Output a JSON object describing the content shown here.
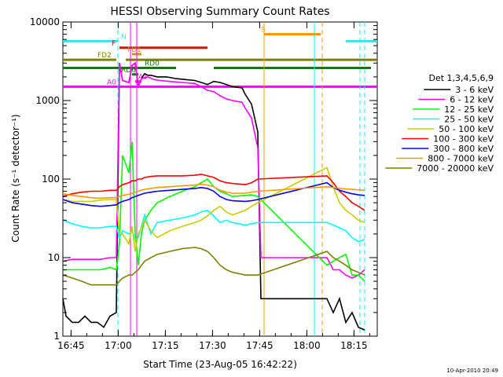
{
  "chart_data": {
    "type": "line",
    "title": "HESSI Observing Summary Count Rates",
    "xlabel": "Start Time (23-Aug-05 16:42:22)",
    "ylabel": "Count Rate (s⁻¹ detector⁻¹)",
    "x_unit": "UT minutes after 16:42:22",
    "xlim": [
      0,
      100
    ],
    "ylim": [
      1,
      10000
    ],
    "y_scale": "log",
    "x_ticks": [
      {
        "label": "16:45",
        "x": 2.6
      },
      {
        "label": "17:00",
        "x": 17.6
      },
      {
        "label": "17:15",
        "x": 32.6
      },
      {
        "label": "17:30",
        "x": 47.6
      },
      {
        "label": "17:45",
        "x": 62.6
      },
      {
        "label": "18:00",
        "x": 77.6
      },
      {
        "label": "18:15",
        "x": 92.6
      }
    ],
    "y_ticks": [
      {
        "label": "1",
        "y": 1
      },
      {
        "label": "10",
        "y": 10
      },
      {
        "label": "100",
        "y": 100
      },
      {
        "label": "1000",
        "y": 1000
      },
      {
        "label": "10000",
        "y": 10000
      }
    ],
    "legend_title": "Det 1,3,4,5,6,9",
    "legend_position": "right",
    "timestamp": "10-Apr-2010 20:49",
    "series": [
      {
        "name": "3 - 6 keV",
        "color": "#000000",
        "x": [
          0,
          1,
          3,
          5,
          7,
          9,
          11,
          13,
          15,
          17,
          18,
          19,
          21,
          22,
          23,
          24,
          25,
          26,
          27,
          28,
          30,
          33,
          36,
          39,
          42,
          44,
          46,
          48,
          50,
          52,
          54,
          57,
          58,
          60,
          62,
          63,
          84,
          86,
          88,
          90,
          92,
          94,
          96
        ],
        "y": [
          3,
          1.8,
          1.5,
          1.5,
          1.8,
          1.5,
          1.5,
          1.3,
          1.8,
          2,
          3000,
          1800,
          1700,
          2800,
          3000,
          1500,
          1900,
          2200,
          2100,
          2100,
          2000,
          2000,
          1900,
          1850,
          1800,
          1700,
          1600,
          1750,
          1700,
          1600,
          1500,
          1450,
          1200,
          900,
          400,
          3,
          3,
          2,
          3,
          1.5,
          2,
          1.3,
          1.2
        ]
      },
      {
        "name": "6 - 12 keV",
        "color": "#ff00ff",
        "x": [
          0,
          3,
          6,
          9,
          12,
          15,
          17,
          18,
          19,
          21,
          22,
          23,
          24,
          25,
          27,
          29,
          31,
          34,
          38,
          42,
          44,
          46,
          48,
          50,
          52,
          54,
          57,
          58,
          60,
          62,
          63,
          84,
          86,
          88,
          90,
          92,
          94,
          96
        ],
        "y": [
          9,
          9.5,
          9.5,
          9.5,
          9.5,
          10,
          10,
          3000,
          1800,
          1700,
          2800,
          3000,
          1500,
          1900,
          2000,
          1850,
          1800,
          1750,
          1700,
          1650,
          1500,
          1350,
          1300,
          1150,
          1050,
          1000,
          950,
          800,
          600,
          250,
          10,
          10,
          7,
          7,
          6,
          5.5,
          6,
          7
        ]
      },
      {
        "name": "12 - 25 keV",
        "color": "#00ff00",
        "x": [
          0,
          3,
          6,
          9,
          12,
          15,
          17,
          18,
          19,
          21,
          22,
          23,
          24,
          25,
          26,
          28,
          30,
          34,
          38,
          42,
          44,
          46,
          48,
          50,
          52,
          54,
          58,
          60,
          62,
          84,
          86,
          88,
          90,
          92,
          94,
          96
        ],
        "y": [
          7,
          7,
          7,
          7,
          7,
          7.5,
          7,
          15,
          200,
          120,
          300,
          20,
          8,
          20,
          30,
          40,
          50,
          60,
          70,
          80,
          90,
          100,
          80,
          70,
          65,
          60,
          62,
          63,
          60,
          8,
          9,
          10,
          11,
          6,
          6,
          5
        ]
      },
      {
        "name": "25 - 50 keV",
        "color": "#00ffff",
        "x": [
          0,
          3,
          6,
          9,
          12,
          15,
          17,
          18,
          19,
          21,
          22,
          23,
          24,
          25,
          26,
          28,
          30,
          34,
          38,
          42,
          44,
          46,
          48,
          50,
          52,
          54,
          58,
          60,
          62,
          84,
          86,
          88,
          90,
          92,
          94,
          96
        ],
        "y": [
          30,
          27,
          25,
          24,
          24,
          25,
          25,
          18,
          22,
          20,
          22,
          17,
          18,
          25,
          35,
          20,
          28,
          30,
          32,
          35,
          38,
          40,
          34,
          28,
          30,
          28,
          26,
          27,
          28,
          28,
          26,
          24,
          22,
          18,
          16,
          17
        ]
      },
      {
        "name": "50 - 100 keV",
        "color": "#cccc00",
        "x": [
          0,
          3,
          6,
          9,
          12,
          15,
          17,
          18,
          19,
          21,
          22,
          23,
          24,
          25,
          26,
          28,
          30,
          34,
          38,
          42,
          44,
          46,
          48,
          50,
          52,
          54,
          58,
          60,
          62,
          84,
          86,
          88,
          90,
          92,
          94,
          96
        ],
        "y": [
          55,
          52,
          52,
          52,
          54,
          55,
          55,
          20,
          20,
          15,
          25,
          12,
          20,
          24,
          30,
          22,
          18,
          22,
          25,
          28,
          30,
          34,
          40,
          45,
          38,
          35,
          40,
          45,
          50,
          140,
          80,
          50,
          40,
          35,
          30,
          28
        ]
      },
      {
        "name": "100 - 300 keV",
        "color": "#ff0000",
        "x": [
          0,
          3,
          6,
          9,
          12,
          15,
          17,
          18,
          19,
          21,
          22,
          23,
          24,
          25,
          26,
          28,
          30,
          34,
          38,
          42,
          44,
          46,
          48,
          50,
          52,
          54,
          58,
          60,
          62,
          84,
          86,
          88,
          90,
          92,
          94,
          96
        ],
        "y": [
          60,
          65,
          68,
          70,
          70,
          72,
          72,
          80,
          85,
          90,
          95,
          95,
          100,
          100,
          105,
          108,
          110,
          110,
          110,
          112,
          115,
          110,
          105,
          95,
          90,
          88,
          85,
          90,
          100,
          110,
          90,
          70,
          60,
          50,
          45,
          40
        ]
      },
      {
        "name": "300 - 800 keV",
        "color": "#0000ff",
        "x": [
          0,
          3,
          6,
          9,
          12,
          15,
          17,
          18,
          19,
          21,
          22,
          23,
          24,
          25,
          26,
          28,
          30,
          34,
          38,
          42,
          44,
          46,
          48,
          50,
          52,
          54,
          58,
          60,
          62,
          84,
          86,
          88,
          90,
          92,
          94,
          96
        ],
        "y": [
          55,
          50,
          48,
          46,
          45,
          46,
          47,
          50,
          52,
          55,
          58,
          60,
          62,
          64,
          66,
          68,
          70,
          72,
          74,
          76,
          78,
          76,
          70,
          60,
          55,
          53,
          52,
          53,
          55,
          90,
          78,
          72,
          68,
          65,
          63,
          62
        ]
      },
      {
        "name": "800 - 7000 keV",
        "color": "#ff9900",
        "x": [
          0,
          3,
          6,
          9,
          12,
          15,
          17,
          18,
          19,
          21,
          22,
          23,
          24,
          25,
          26,
          28,
          30,
          34,
          38,
          42,
          44,
          46,
          48,
          50,
          52,
          54,
          58,
          60,
          62,
          84,
          86,
          88,
          90,
          92,
          94,
          96
        ],
        "y": [
          65,
          62,
          60,
          58,
          57,
          58,
          58,
          60,
          62,
          64,
          66,
          68,
          70,
          72,
          74,
          76,
          78,
          80,
          82,
          84,
          86,
          84,
          80,
          72,
          68,
          66,
          66,
          68,
          70,
          80,
          78,
          76,
          75,
          74,
          73,
          72
        ]
      },
      {
        "name": "7000 - 20000 keV",
        "color": "#808000",
        "x": [
          0,
          3,
          6,
          9,
          12,
          15,
          17,
          18,
          19,
          21,
          22,
          23,
          24,
          25,
          26,
          28,
          30,
          34,
          38,
          42,
          44,
          46,
          48,
          50,
          52,
          54,
          58,
          60,
          62,
          84,
          86,
          88,
          90,
          92,
          94,
          96
        ],
        "y": [
          6,
          5.5,
          5,
          4.5,
          4.5,
          4.5,
          4.5,
          5,
          5.5,
          6,
          6,
          6.5,
          7,
          8,
          9,
          10,
          11,
          12,
          13,
          13.5,
          13,
          12,
          10,
          8,
          7,
          6.5,
          6,
          6,
          6,
          12,
          10,
          9,
          8,
          7,
          6.5,
          6
        ]
      }
    ],
    "flag_bars": [
      {
        "label": "N",
        "color": "#00ffff",
        "segments": [
          [
            0,
            17.5
          ],
          [
            90,
            100
          ]
        ]
      },
      {
        "label": "S",
        "color": "#ff9900",
        "segments": [
          [
            64,
            82
          ]
        ]
      },
      {
        "label": "F",
        "color": "#ff0000",
        "segments": [
          [
            18,
            46
          ]
        ]
      },
      {
        "label": "FD1",
        "color": "#cc9900",
        "segments": [
          [
            22,
            25
          ]
        ]
      },
      {
        "label": "FD2",
        "color": "#808000",
        "segments": [
          [
            0,
            17
          ],
          [
            20,
            100
          ]
        ]
      },
      {
        "label": "RD0",
        "color": "#008000",
        "segments": [
          [
            0,
            36
          ],
          [
            48,
            98
          ]
        ]
      },
      {
        "label": "RD6",
        "color": "#008000",
        "segments": [
          [
            22,
            24
          ]
        ]
      },
      {
        "label": "A0",
        "color": "#ff00ff",
        "segments": [
          [
            0,
            100
          ]
        ]
      },
      {
        "label": "A1",
        "color": "#ff00ff",
        "segments": [
          [
            23,
            25
          ]
        ]
      }
    ],
    "event_lines": [
      {
        "x": 17.5,
        "color": "#00ffff",
        "style": "dashed"
      },
      {
        "x": 21.5,
        "color": "#ff00ff",
        "style": "solid"
      },
      {
        "x": 23.5,
        "color": "#ff00ff",
        "style": "solid"
      },
      {
        "x": 64,
        "color": "#ff9900",
        "style": "solid"
      },
      {
        "x": 80,
        "color": "#00ffff",
        "style": "solid"
      },
      {
        "x": 82.5,
        "color": "#ff9900",
        "style": "dashed"
      },
      {
        "x": 94.5,
        "color": "#00ffff",
        "style": "dashed"
      },
      {
        "x": 96,
        "color": "#00ffff",
        "style": "dashed"
      }
    ]
  }
}
